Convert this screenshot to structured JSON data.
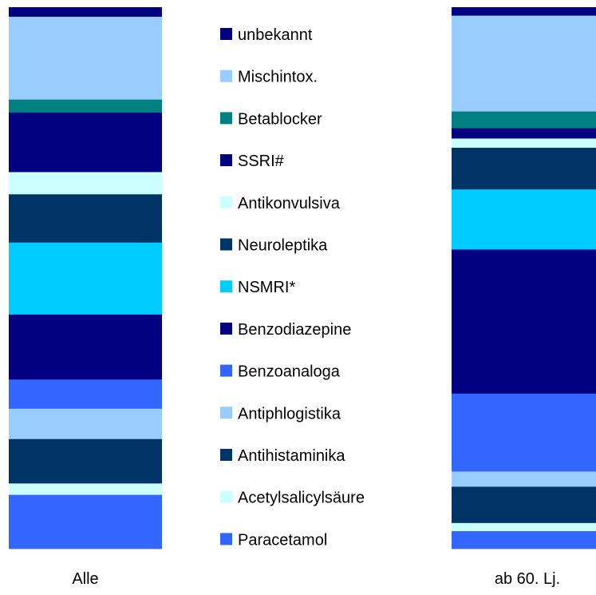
{
  "chart_data": {
    "type": "bar",
    "stacked": true,
    "normalized": true,
    "categories": [
      "Alle",
      "ab 60. Lj."
    ],
    "series": [
      {
        "name": "Paracetamol",
        "color": "#3366ff",
        "values": [
          10.0,
          3.3
        ]
      },
      {
        "name": "Acetylsalicylsäure",
        "color": "#ccffff",
        "values": [
          2.1,
          1.5
        ]
      },
      {
        "name": "Antihistaminika",
        "color": "#003366",
        "values": [
          8.2,
          6.7
        ]
      },
      {
        "name": "Antiphlogistika",
        "color": "#99ccff",
        "values": [
          5.6,
          2.8
        ]
      },
      {
        "name": "Benzoanaloga",
        "color": "#3366ff",
        "values": [
          5.4,
          14.4
        ]
      },
      {
        "name": "Benzodiazepine",
        "color": "#000080",
        "values": [
          12.0,
          26.6
        ]
      },
      {
        "name": "NSMRI*",
        "color": "#00ccff",
        "values": [
          13.3,
          11.1
        ]
      },
      {
        "name": "Neuroleptika",
        "color": "#003366",
        "values": [
          8.9,
          7.7
        ]
      },
      {
        "name": "Antikonvulsiva",
        "color": "#ccffff",
        "values": [
          4.1,
          1.7
        ]
      },
      {
        "name": "SSRI#",
        "color": "#000080",
        "values": [
          11.0,
          1.9
        ]
      },
      {
        "name": "Betablocker",
        "color": "#008080",
        "values": [
          2.4,
          3.1
        ]
      },
      {
        "name": "Mischintox.",
        "color": "#99ccff",
        "values": [
          15.3,
          17.7
        ]
      },
      {
        "name": "unbekannt",
        "color": "#000080",
        "values": [
          1.7,
          1.5
        ]
      }
    ],
    "legend_order": [
      "unbekannt",
      "Mischintox.",
      "Betablocker",
      "SSRI#",
      "Antikonvulsiva",
      "Neuroleptika",
      "NSMRI*",
      "Benzodiazepine",
      "Benzoanaloga",
      "Antiphlogistika",
      "Antihistaminika",
      "Acetylsalicylsäure",
      "Paracetamol"
    ],
    "legend_position": "center",
    "grid": false,
    "xlabel": "",
    "ylabel": ""
  }
}
